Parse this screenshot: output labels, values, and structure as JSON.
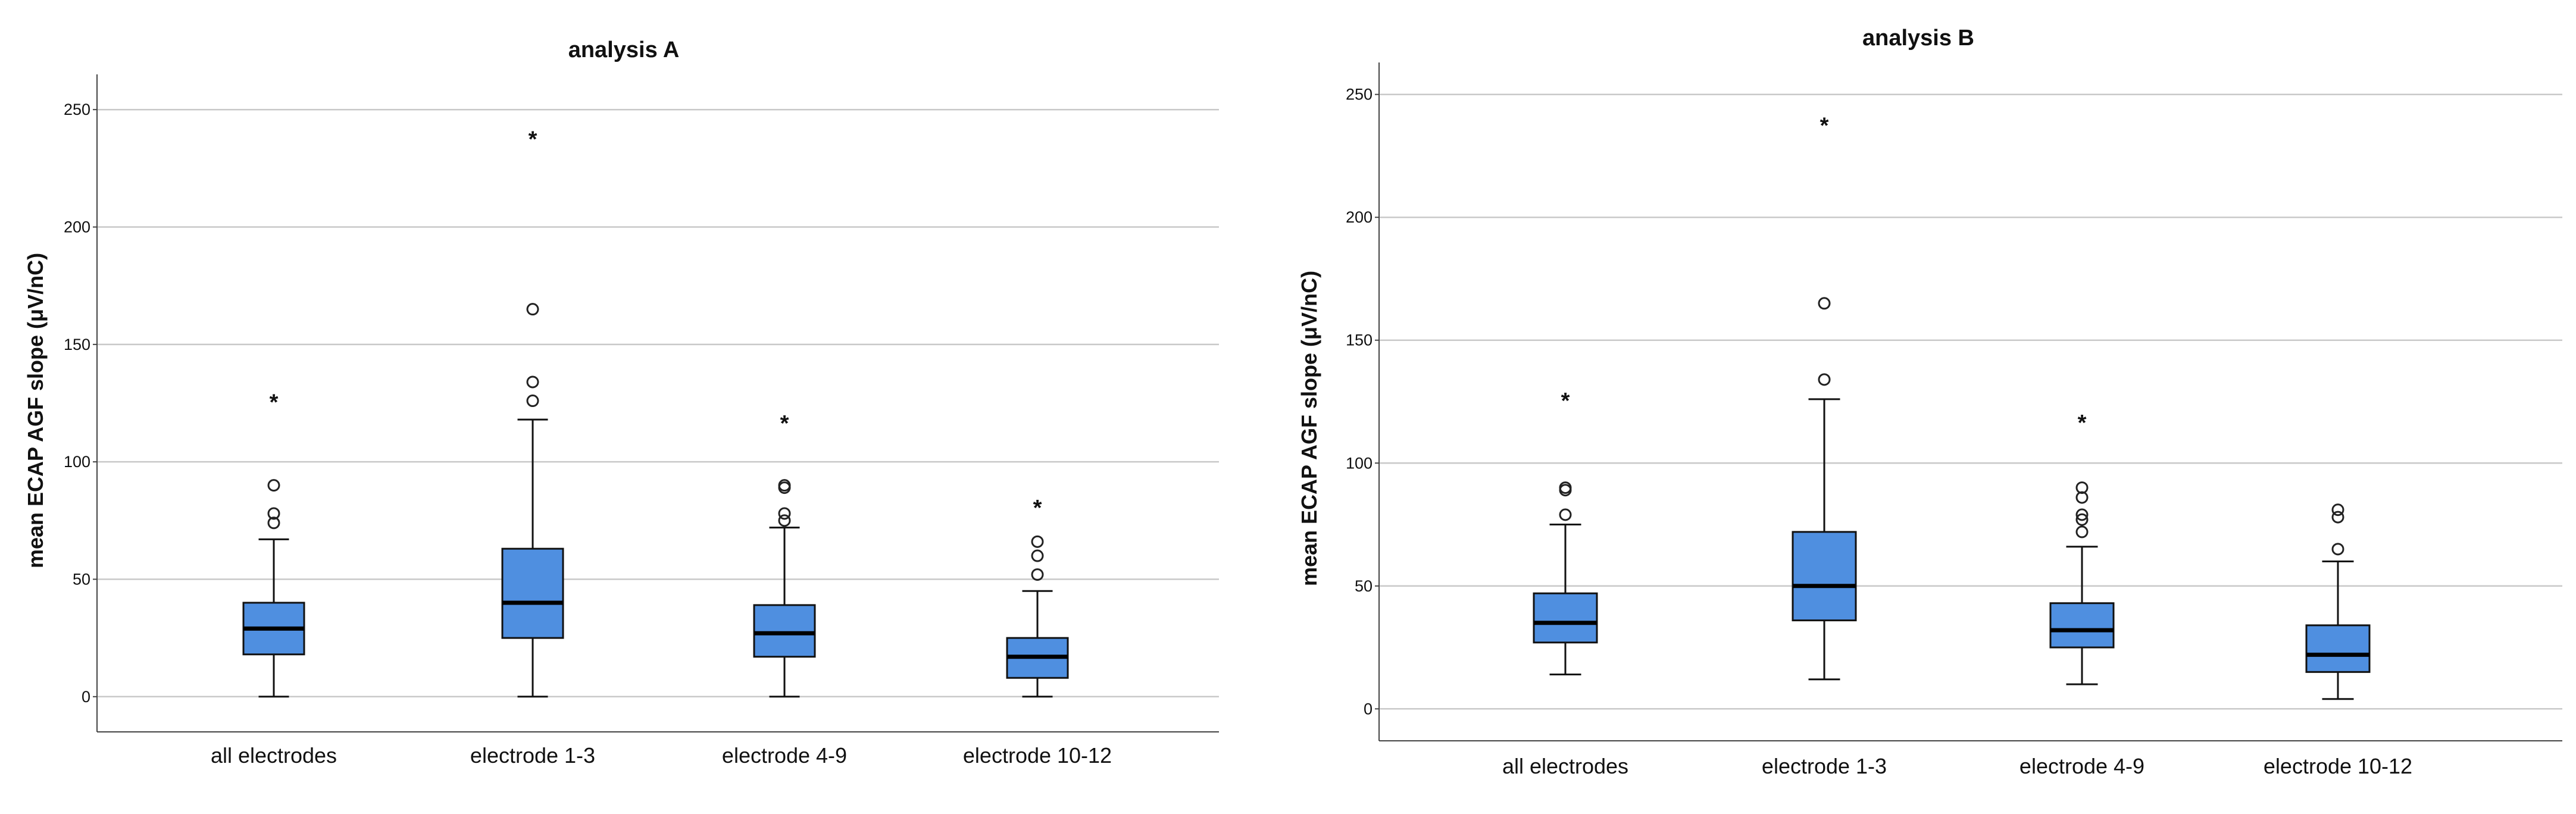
{
  "chart_data": [
    {
      "type": "boxplot",
      "title": "analysis A",
      "ylabel": "mean ECAP AGF slope (μV/nC)",
      "xlabel": "",
      "ylim": [
        -15,
        265
      ],
      "yticks": [
        0,
        50,
        100,
        150,
        200,
        250
      ],
      "grid": true,
      "box_color": "#4f8fe0",
      "categories": [
        "all electrodes",
        "electrode 1-3",
        "electrode 4-9",
        "electrode 10-12"
      ],
      "boxes": [
        {
          "min": 0,
          "q1": 18,
          "median": 29,
          "q3": 40,
          "max": 67,
          "outliers": [
            74,
            78,
            90
          ],
          "extremes": [
            126
          ]
        },
        {
          "min": 0,
          "q1": 25,
          "median": 40,
          "q3": 63,
          "max": 118,
          "outliers": [
            126,
            134,
            165
          ],
          "extremes": [
            238
          ]
        },
        {
          "min": 0,
          "q1": 17,
          "median": 27,
          "q3": 39,
          "max": 72,
          "outliers": [
            75,
            78,
            89,
            90
          ],
          "extremes": [
            117
          ]
        },
        {
          "min": 0,
          "q1": 8,
          "median": 17,
          "q3": 25,
          "max": 45,
          "outliers": [
            52,
            60,
            66
          ],
          "extremes": [
            81
          ]
        }
      ]
    },
    {
      "type": "boxplot",
      "title": "analysis B",
      "ylabel": "mean ECAP AGF slope (μV/nC)",
      "xlabel": "",
      "ylim": [
        -13,
        263
      ],
      "yticks": [
        0,
        50,
        100,
        150,
        200,
        250
      ],
      "grid": true,
      "box_color": "#4f8fe0",
      "categories": [
        "all electrodes",
        "electrode 1-3",
        "electrode 4-9",
        "electrode 10-12"
      ],
      "boxes": [
        {
          "min": 14,
          "q1": 27,
          "median": 35,
          "q3": 47,
          "max": 75,
          "outliers": [
            79,
            89,
            90
          ],
          "extremes": [
            126
          ]
        },
        {
          "min": 12,
          "q1": 36,
          "median": 50,
          "q3": 72,
          "max": 126,
          "outliers": [
            134,
            165
          ],
          "extremes": [
            238
          ]
        },
        {
          "min": 10,
          "q1": 25,
          "median": 32,
          "q3": 43,
          "max": 66,
          "outliers": [
            72,
            77,
            79,
            86,
            90
          ],
          "extremes": [
            117
          ]
        },
        {
          "min": 4,
          "q1": 15,
          "median": 22,
          "q3": 34,
          "max": 60,
          "outliers": [
            65,
            78,
            81
          ],
          "extremes": []
        }
      ]
    }
  ]
}
